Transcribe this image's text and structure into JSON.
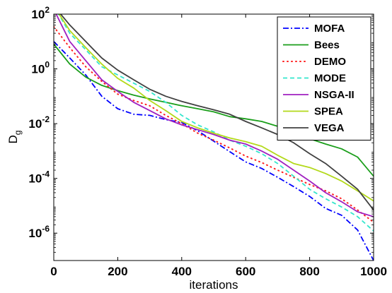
{
  "chart_data": {
    "type": "line",
    "xlabel": "iterations",
    "ylabel_main": "D",
    "ylabel_sub": "g",
    "xlim": [
      0,
      1000
    ],
    "ylim": [
      1e-07,
      100
    ],
    "yscale": "log",
    "grid": false,
    "legend_position": "top-right",
    "x_ticks": [
      0,
      200,
      400,
      600,
      800,
      1000
    ],
    "y_ticks": [
      {
        "exp": 2,
        "value": 100,
        "base": "10",
        "exponent": "2"
      },
      {
        "exp": 0,
        "value": 1,
        "base": "10",
        "exponent": "0"
      },
      {
        "exp": -2,
        "value": 0.01,
        "base": "10",
        "exponent": "-2"
      },
      {
        "exp": -4,
        "value": 0.0001,
        "base": "10",
        "exponent": "-4"
      },
      {
        "exp": -6,
        "value": 1e-06,
        "base": "10",
        "exponent": "-6"
      }
    ],
    "series": [
      {
        "name": "MOFA",
        "color": "#0000ff",
        "dash": "8,3,2,3",
        "x": [
          0,
          50,
          100,
          150,
          200,
          250,
          300,
          350,
          400,
          450,
          500,
          550,
          600,
          650,
          700,
          750,
          800,
          850,
          900,
          950,
          1000
        ],
        "y": [
          10,
          2.5,
          0.6,
          0.1,
          0.035,
          0.022,
          0.02,
          0.014,
          0.011,
          0.0055,
          0.0023,
          0.00095,
          0.0004,
          0.00023,
          0.00011,
          5e-05,
          2.2e-05,
          8e-06,
          4.5e-06,
          1.3e-06,
          1e-07
        ]
      },
      {
        "name": "Bees",
        "color": "#1a9e1a",
        "dash": "",
        "x": [
          0,
          50,
          100,
          150,
          200,
          250,
          300,
          350,
          400,
          450,
          500,
          550,
          600,
          650,
          700,
          750,
          800,
          850,
          900,
          950,
          1000
        ],
        "y": [
          8,
          1.5,
          0.5,
          0.25,
          0.16,
          0.11,
          0.08,
          0.06,
          0.045,
          0.035,
          0.027,
          0.018,
          0.015,
          0.012,
          0.008,
          0.0045,
          0.0028,
          0.0018,
          0.0012,
          0.0006,
          0.00012
        ]
      },
      {
        "name": "DEMO",
        "color": "#ff2020",
        "dash": "1,5",
        "x": [
          0,
          50,
          100,
          150,
          200,
          250,
          300,
          350,
          400,
          450,
          500,
          550,
          600,
          650,
          700,
          750,
          800,
          850,
          900,
          950,
          1000
        ],
        "y": [
          35,
          6,
          1.2,
          0.35,
          0.12,
          0.07,
          0.045,
          0.02,
          0.01,
          0.0045,
          0.0025,
          0.0013,
          0.00065,
          0.00038,
          0.0002,
          0.00011,
          6e-05,
          3.5e-05,
          1.8e-05,
          7e-06,
          2.5e-06
        ]
      },
      {
        "name": "MODE",
        "color": "#33e6cc",
        "dash": "6,4",
        "x": [
          0,
          50,
          100,
          150,
          200,
          250,
          300,
          350,
          400,
          450,
          500,
          550,
          600,
          650,
          700,
          750,
          800,
          850,
          900,
          950,
          1000
        ],
        "y": [
          200,
          20,
          5,
          1.2,
          0.6,
          0.3,
          0.15,
          0.06,
          0.02,
          0.009,
          0.005,
          0.0025,
          0.0015,
          0.0008,
          0.00035,
          0.00012,
          4e-05,
          1.8e-05,
          9e-06,
          4e-06,
          1.2e-06
        ]
      },
      {
        "name": "NSGA-II",
        "color": "#a020c0",
        "dash": "",
        "x": [
          0,
          50,
          100,
          150,
          200,
          250,
          300,
          350,
          400,
          450,
          500,
          550,
          600,
          650,
          700,
          750,
          800,
          850,
          900,
          950,
          1000
        ],
        "y": [
          150,
          10,
          2,
          0.4,
          0.15,
          0.06,
          0.03,
          0.015,
          0.009,
          0.006,
          0.004,
          0.0025,
          0.0018,
          0.001,
          0.0005,
          0.0002,
          8e-05,
          3e-05,
          1.4e-05,
          6e-06,
          4e-06
        ]
      },
      {
        "name": "SPEA",
        "color": "#b3d91a",
        "dash": "",
        "x": [
          0,
          50,
          100,
          150,
          200,
          250,
          300,
          350,
          400,
          450,
          500,
          550,
          600,
          650,
          700,
          750,
          800,
          850,
          900,
          950,
          1000
        ],
        "y": [
          200,
          25,
          6,
          1.5,
          0.45,
          0.2,
          0.07,
          0.03,
          0.012,
          0.007,
          0.0045,
          0.003,
          0.0022,
          0.0015,
          0.0007,
          0.00035,
          0.00025,
          0.00015,
          8e-05,
          3.5e-05,
          1.5e-05
        ]
      },
      {
        "name": "VEGA",
        "color": "#404040",
        "dash": "",
        "x": [
          0,
          50,
          100,
          150,
          200,
          250,
          300,
          350,
          400,
          450,
          500,
          550,
          600,
          650,
          700,
          750,
          800,
          850,
          900,
          950,
          1000
        ],
        "y": [
          200,
          40,
          10,
          2.5,
          0.9,
          0.4,
          0.18,
          0.1,
          0.065,
          0.045,
          0.032,
          0.022,
          0.012,
          0.007,
          0.004,
          0.002,
          0.0008,
          0.00035,
          0.00012,
          4e-05,
          7e-06
        ]
      }
    ]
  }
}
